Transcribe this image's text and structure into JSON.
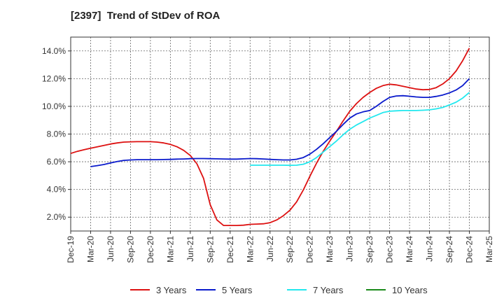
{
  "chart_data": {
    "type": "line",
    "title": "[2397]  Trend of StDev of ROA",
    "xlabel": "",
    "ylabel": "",
    "ylim": [
      1.0,
      15.0
    ],
    "y_ticks": [
      {
        "value": 2.0,
        "label": "2.0%"
      },
      {
        "value": 4.0,
        "label": "4.0%"
      },
      {
        "value": 6.0,
        "label": "6.0%"
      },
      {
        "value": 8.0,
        "label": "8.0%"
      },
      {
        "value": 10.0,
        "label": "10.0%"
      },
      {
        "value": 12.0,
        "label": "12.0%"
      },
      {
        "value": 14.0,
        "label": "14.0%"
      }
    ],
    "x_tick_labels": [
      "Dec-19",
      "Mar-20",
      "Jun-20",
      "Sep-20",
      "Dec-20",
      "Mar-21",
      "Jun-21",
      "Sep-21",
      "Dec-21",
      "Mar-22",
      "Jun-22",
      "Sep-22",
      "Dec-22",
      "Mar-23",
      "Jun-23",
      "Sep-23",
      "Dec-23",
      "Mar-24",
      "Jun-24",
      "Sep-24",
      "Dec-24",
      "Mar-25"
    ],
    "grid": true,
    "legend_position": "bottom",
    "series": [
      {
        "name": "3 Years",
        "color": "#dd1111",
        "points": [
          [
            "Dec-19",
            6.6
          ],
          [
            "Jan-20",
            6.75
          ],
          [
            "Feb-20",
            6.87
          ],
          [
            "Mar-20",
            6.98
          ],
          [
            "Apr-20",
            7.08
          ],
          [
            "May-20",
            7.18
          ],
          [
            "Jun-20",
            7.28
          ],
          [
            "Jul-20",
            7.36
          ],
          [
            "Aug-20",
            7.42
          ],
          [
            "Sep-20",
            7.44
          ],
          [
            "Oct-20",
            7.45
          ],
          [
            "Nov-20",
            7.45
          ],
          [
            "Dec-20",
            7.45
          ],
          [
            "Jan-21",
            7.42
          ],
          [
            "Feb-21",
            7.36
          ],
          [
            "Mar-21",
            7.25
          ],
          [
            "Apr-21",
            7.08
          ],
          [
            "May-21",
            6.82
          ],
          [
            "Jun-21",
            6.45
          ],
          [
            "Jul-21",
            5.85
          ],
          [
            "Aug-21",
            4.8
          ],
          [
            "Sep-21",
            2.9
          ],
          [
            "Oct-21",
            1.8
          ],
          [
            "Nov-21",
            1.4
          ],
          [
            "Dec-21",
            1.4
          ],
          [
            "Jan-22",
            1.4
          ],
          [
            "Feb-22",
            1.42
          ],
          [
            "Mar-22",
            1.48
          ],
          [
            "Apr-22",
            1.5
          ],
          [
            "May-22",
            1.52
          ],
          [
            "Jun-22",
            1.6
          ],
          [
            "Jul-22",
            1.8
          ],
          [
            "Aug-22",
            2.1
          ],
          [
            "Sep-22",
            2.5
          ],
          [
            "Oct-22",
            3.1
          ],
          [
            "Nov-22",
            3.95
          ],
          [
            "Dec-22",
            4.95
          ],
          [
            "Jan-23",
            5.9
          ],
          [
            "Feb-23",
            6.75
          ],
          [
            "Mar-23",
            7.5
          ],
          [
            "Apr-23",
            8.2
          ],
          [
            "May-23",
            8.95
          ],
          [
            "Jun-23",
            9.65
          ],
          [
            "Jul-23",
            10.2
          ],
          [
            "Aug-23",
            10.65
          ],
          [
            "Sep-23",
            11.0
          ],
          [
            "Oct-23",
            11.3
          ],
          [
            "Nov-23",
            11.5
          ],
          [
            "Dec-23",
            11.6
          ],
          [
            "Jan-24",
            11.55
          ],
          [
            "Feb-24",
            11.45
          ],
          [
            "Mar-24",
            11.35
          ],
          [
            "Apr-24",
            11.25
          ],
          [
            "May-24",
            11.2
          ],
          [
            "Jun-24",
            11.22
          ],
          [
            "Jul-24",
            11.35
          ],
          [
            "Aug-24",
            11.62
          ],
          [
            "Sep-24",
            12.0
          ],
          [
            "Oct-24",
            12.55
          ],
          [
            "Nov-24",
            13.3
          ],
          [
            "Dec-24",
            14.2
          ]
        ]
      },
      {
        "name": "5 Years",
        "color": "#0a1acc",
        "points": [
          [
            "Mar-20",
            5.65
          ],
          [
            "Apr-20",
            5.72
          ],
          [
            "May-20",
            5.8
          ],
          [
            "Jun-20",
            5.92
          ],
          [
            "Jul-20",
            6.02
          ],
          [
            "Aug-20",
            6.1
          ],
          [
            "Sep-20",
            6.13
          ],
          [
            "Oct-20",
            6.15
          ],
          [
            "Nov-20",
            6.15
          ],
          [
            "Dec-20",
            6.15
          ],
          [
            "Jan-21",
            6.15
          ],
          [
            "Feb-21",
            6.16
          ],
          [
            "Mar-21",
            6.17
          ],
          [
            "Apr-21",
            6.19
          ],
          [
            "May-21",
            6.2
          ],
          [
            "Jun-21",
            6.22
          ],
          [
            "Jul-21",
            6.23
          ],
          [
            "Aug-21",
            6.23
          ],
          [
            "Sep-21",
            6.22
          ],
          [
            "Oct-21",
            6.21
          ],
          [
            "Nov-21",
            6.2
          ],
          [
            "Dec-21",
            6.19
          ],
          [
            "Jan-22",
            6.19
          ],
          [
            "Feb-22",
            6.21
          ],
          [
            "Mar-22",
            6.23
          ],
          [
            "Apr-22",
            6.22
          ],
          [
            "May-22",
            6.2
          ],
          [
            "Jun-22",
            6.17
          ],
          [
            "Jul-22",
            6.15
          ],
          [
            "Aug-22",
            6.13
          ],
          [
            "Sep-22",
            6.13
          ],
          [
            "Oct-22",
            6.18
          ],
          [
            "Nov-22",
            6.3
          ],
          [
            "Dec-22",
            6.55
          ],
          [
            "Jan-23",
            6.9
          ],
          [
            "Feb-23",
            7.3
          ],
          [
            "Mar-23",
            7.75
          ],
          [
            "Apr-23",
            8.2
          ],
          [
            "May-23",
            8.7
          ],
          [
            "Jun-23",
            9.15
          ],
          [
            "Jul-23",
            9.45
          ],
          [
            "Aug-23",
            9.6
          ],
          [
            "Sep-23",
            9.7
          ],
          [
            "Oct-23",
            10.0
          ],
          [
            "Nov-23",
            10.35
          ],
          [
            "Dec-23",
            10.65
          ],
          [
            "Jan-24",
            10.75
          ],
          [
            "Feb-24",
            10.77
          ],
          [
            "Mar-24",
            10.73
          ],
          [
            "Apr-24",
            10.68
          ],
          [
            "May-24",
            10.65
          ],
          [
            "Jun-24",
            10.65
          ],
          [
            "Jul-24",
            10.72
          ],
          [
            "Aug-24",
            10.82
          ],
          [
            "Sep-24",
            10.97
          ],
          [
            "Oct-24",
            11.18
          ],
          [
            "Nov-24",
            11.5
          ],
          [
            "Dec-24",
            12.0
          ]
        ]
      },
      {
        "name": "7 Years",
        "color": "#22e8ee",
        "points": [
          [
            "Mar-22",
            5.75
          ],
          [
            "Apr-22",
            5.75
          ],
          [
            "May-22",
            5.75
          ],
          [
            "Jun-22",
            5.75
          ],
          [
            "Jul-22",
            5.75
          ],
          [
            "Aug-22",
            5.75
          ],
          [
            "Sep-22",
            5.74
          ],
          [
            "Oct-22",
            5.75
          ],
          [
            "Nov-22",
            5.82
          ],
          [
            "Dec-22",
            6.0
          ],
          [
            "Jan-23",
            6.3
          ],
          [
            "Feb-23",
            6.7
          ],
          [
            "Mar-23",
            7.1
          ],
          [
            "Apr-23",
            7.5
          ],
          [
            "May-23",
            7.95
          ],
          [
            "Jun-23",
            8.35
          ],
          [
            "Jul-23",
            8.65
          ],
          [
            "Aug-23",
            8.9
          ],
          [
            "Sep-23",
            9.15
          ],
          [
            "Oct-23",
            9.35
          ],
          [
            "Nov-23",
            9.55
          ],
          [
            "Dec-23",
            9.65
          ],
          [
            "Jan-24",
            9.68
          ],
          [
            "Feb-24",
            9.7
          ],
          [
            "Mar-24",
            9.7
          ],
          [
            "Apr-24",
            9.7
          ],
          [
            "May-24",
            9.72
          ],
          [
            "Jun-24",
            9.75
          ],
          [
            "Jul-24",
            9.82
          ],
          [
            "Aug-24",
            9.92
          ],
          [
            "Sep-24",
            10.1
          ],
          [
            "Oct-24",
            10.3
          ],
          [
            "Nov-24",
            10.6
          ],
          [
            "Dec-24",
            11.0
          ]
        ]
      },
      {
        "name": "10 Years",
        "color": "#1a8a1a",
        "points": []
      }
    ]
  }
}
